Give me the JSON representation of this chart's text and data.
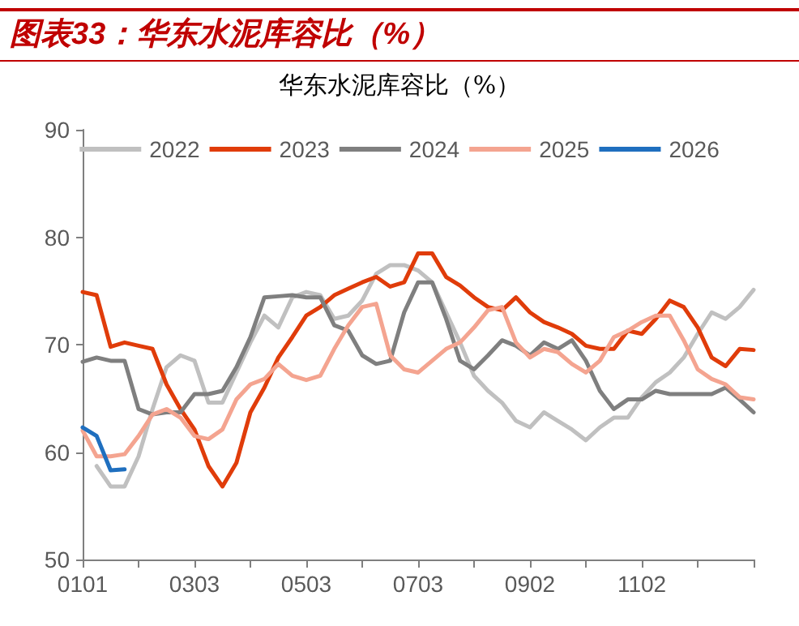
{
  "chart_data": {
    "type": "line",
    "title": "图表33：华东水泥库容比（%）",
    "subtitle": "华东水泥库容比（%）",
    "categories": [
      "0101",
      null,
      null,
      null,
      null,
      null,
      null,
      null,
      "0303",
      null,
      null,
      null,
      null,
      null,
      null,
      null,
      "0503",
      null,
      null,
      null,
      null,
      null,
      null,
      null,
      "0703",
      null,
      null,
      null,
      null,
      null,
      null,
      null,
      "0902",
      null,
      null,
      null,
      null,
      null,
      null,
      null,
      "1102",
      null,
      null,
      null,
      null,
      null,
      null,
      null,
      null
    ],
    "series": [
      {
        "name": "2022",
        "color": "#c0c0c0",
        "values": [
          null,
          58.7,
          56.8,
          56.8,
          59.6,
          64,
          67.9,
          69,
          68.5,
          64.6,
          64.6,
          67.4,
          70.2,
          72.7,
          71.6,
          74.4,
          74.9,
          74.6,
          72.4,
          72.7,
          74.1,
          76.6,
          77.4,
          77.4,
          76.9,
          75.8,
          73,
          70.2,
          67.1,
          65.7,
          64.6,
          62.9,
          62.3,
          63.7,
          62.9,
          62.1,
          61.1,
          62.3,
          63.2,
          63.2,
          65.1,
          66.5,
          67.4,
          68.8,
          71,
          73,
          72.4,
          73.5,
          75.1
        ]
      },
      {
        "name": "2023",
        "color": "#e03c0a",
        "values": [
          74.9,
          74.6,
          69.8,
          70.2,
          69.9,
          69.6,
          66.3,
          64,
          62.1,
          58.7,
          56.8,
          59,
          63.7,
          66,
          68.8,
          70.7,
          72.7,
          73.5,
          74.6,
          75.2,
          75.8,
          76.3,
          75.4,
          75.8,
          78.5,
          78.5,
          76.3,
          75.5,
          74.4,
          73.5,
          73.2,
          74.4,
          73,
          72.1,
          71.6,
          71,
          69.9,
          69.6,
          69.6,
          71.3,
          71,
          72.4,
          74.1,
          73.5,
          71.6,
          68.8,
          68,
          69.6,
          69.5
        ]
      },
      {
        "name": "2024",
        "color": "#7f7f7f",
        "values": [
          68.4,
          68.8,
          68.5,
          68.5,
          64,
          63.5,
          63.7,
          63.7,
          65.4,
          65.4,
          65.7,
          67.9,
          70.7,
          74.4,
          74.5,
          74.6,
          74.4,
          74.4,
          71.8,
          71.3,
          69,
          68.2,
          68.5,
          73,
          75.8,
          75.8,
          72.4,
          68.5,
          67.7,
          69,
          70.4,
          69.9,
          69,
          70.2,
          69.6,
          70.4,
          68.5,
          65.7,
          64,
          64.9,
          64.9,
          65.7,
          65.4,
          65.4,
          65.4,
          65.4,
          66,
          64.9,
          63.7
        ]
      },
      {
        "name": "2025",
        "color": "#f4a490",
        "values": [
          62,
          59.6,
          59.6,
          59.8,
          61.5,
          63.5,
          64,
          63.2,
          61.5,
          61.2,
          62.1,
          64.9,
          66.3,
          66.8,
          68.2,
          67.1,
          66.7,
          67.1,
          69.6,
          71.8,
          73.5,
          73.8,
          69,
          67.7,
          67.4,
          68.5,
          69.6,
          70.2,
          71.6,
          73.2,
          73.5,
          70.2,
          68.8,
          69.6,
          69.3,
          68.2,
          67.4,
          68.5,
          70.7,
          71.3,
          72.1,
          72.7,
          72.7,
          70.4,
          67.7,
          66.8,
          66.3,
          65.1,
          64.9
        ]
      },
      {
        "name": "2026",
        "color": "#1f6fbf",
        "values": [
          62.3,
          61.5,
          58.3,
          58.4,
          null,
          null,
          null,
          null,
          null,
          null,
          null,
          null,
          null,
          null,
          null,
          null,
          null,
          null,
          null,
          null,
          null,
          null,
          null,
          null,
          null,
          null,
          null,
          null,
          null,
          null,
          null,
          null,
          null,
          null,
          null,
          null,
          null,
          null,
          null,
          null,
          null,
          null,
          null,
          null,
          null,
          null,
          null,
          null,
          null
        ]
      }
    ],
    "ylim": [
      50,
      90
    ],
    "yticks": [
      50,
      60,
      70,
      80,
      90
    ],
    "grid": false,
    "legend": "top",
    "marker": "none",
    "line_style": "solid"
  }
}
